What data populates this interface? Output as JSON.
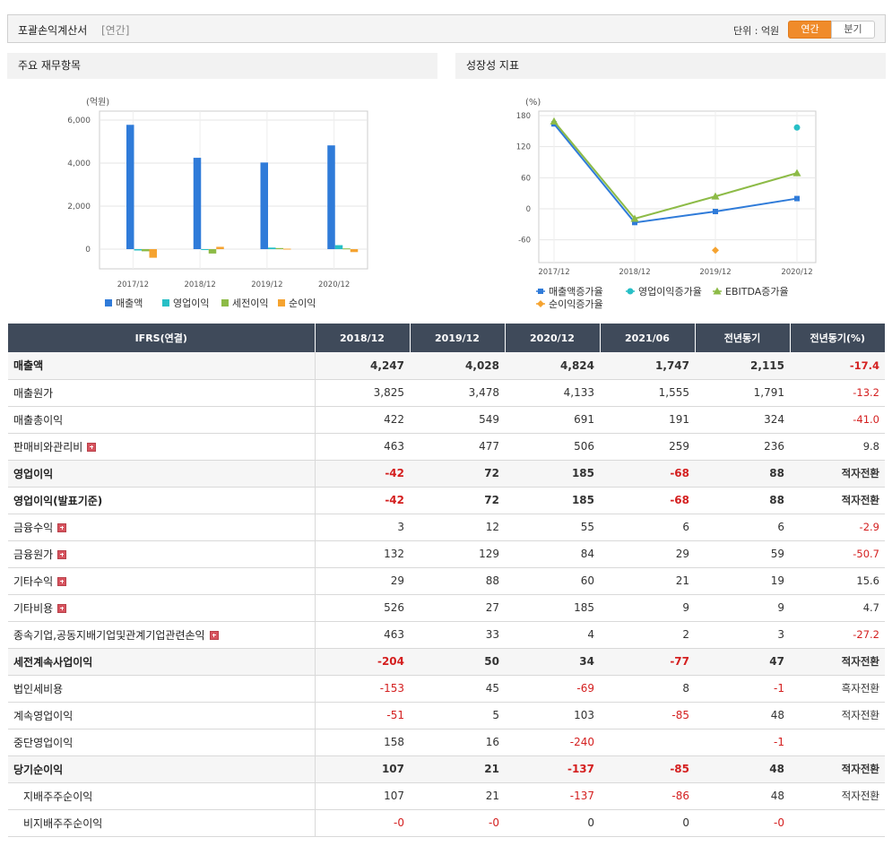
{
  "header": {
    "title": "포괄손익계산서",
    "period": "[연간]",
    "unit": "단위 : 억원",
    "toggle_annual": "연간",
    "toggle_quarter": "분기"
  },
  "panels": {
    "left_title": "주요 재무항목",
    "right_title": "성장성 지표"
  },
  "colors": {
    "sales": "#2f7bd9",
    "op": "#27bfc6",
    "pretax": "#8dbb47",
    "net": "#f5a330",
    "neg": "#d41f1f",
    "header_bg": "#3f4a5a"
  },
  "chart_data": [
    {
      "type": "bar",
      "unit_label": "(억원)",
      "categories": [
        "2017/12",
        "2018/12",
        "2019/12",
        "2020/12"
      ],
      "series": [
        {
          "name": "매출액",
          "values": [
            5780,
            4247,
            4028,
            4824
          ]
        },
        {
          "name": "영업이익",
          "values": [
            -62,
            -42,
            72,
            185
          ]
        },
        {
          "name": "세전이익",
          "values": [
            -100,
            -204,
            50,
            34
          ]
        },
        {
          "name": "순이익",
          "values": [
            -400,
            107,
            21,
            -137
          ]
        }
      ],
      "yticks": [
        "6,000",
        "4,000",
        "2,000",
        "0"
      ],
      "ylim": [
        -500,
        6300
      ],
      "legend": "bottom"
    },
    {
      "type": "line",
      "unit_label": "(%)",
      "categories": [
        "2017/12",
        "2018/12",
        "2019/12",
        "2020/12"
      ],
      "series": [
        {
          "name": "매출액증가율",
          "values": [
            164,
            -26.5,
            -5.2,
            19.8
          ]
        },
        {
          "name": "영업이익증가율",
          "values": [
            null,
            null,
            null,
            157
          ]
        },
        {
          "name": "EBITDA증가율",
          "values": [
            169,
            -19,
            24,
            69
          ]
        },
        {
          "name": "순이익증가율",
          "values": [
            null,
            null,
            -80,
            null
          ]
        }
      ],
      "yticks": [
        "180",
        "120",
        "60",
        "0",
        "-60"
      ],
      "ylim": [
        -100,
        190
      ],
      "legend": "bottom"
    }
  ],
  "table": {
    "columns": [
      "IFRS(연결)",
      "2018/12",
      "2019/12",
      "2020/12",
      "2021/06",
      "전년동기",
      "전년동기(%)"
    ],
    "rows": [
      {
        "label": "매출액",
        "values": [
          "4,247",
          "4,028",
          "4,824",
          "1,747",
          "2,115",
          "-17.4"
        ],
        "bold": true,
        "shade": true,
        "plus": false,
        "sub": false
      },
      {
        "label": "매출원가",
        "values": [
          "3,825",
          "3,478",
          "4,133",
          "1,555",
          "1,791",
          "-13.2"
        ],
        "bold": false,
        "shade": false,
        "plus": false,
        "sub": false
      },
      {
        "label": "매출총이익",
        "values": [
          "422",
          "549",
          "691",
          "191",
          "324",
          "-41.0"
        ],
        "bold": false,
        "shade": false,
        "plus": false,
        "sub": false
      },
      {
        "label": "판매비와관리비",
        "values": [
          "463",
          "477",
          "506",
          "259",
          "236",
          "9.8"
        ],
        "bold": false,
        "shade": false,
        "plus": true,
        "sub": false
      },
      {
        "label": "영업이익",
        "values": [
          "-42",
          "72",
          "185",
          "-68",
          "88",
          "적자전환"
        ],
        "bold": true,
        "shade": true,
        "plus": false,
        "sub": false
      },
      {
        "label": "영업이익(발표기준)",
        "values": [
          "-42",
          "72",
          "185",
          "-68",
          "88",
          "적자전환"
        ],
        "bold": true,
        "shade": false,
        "plus": false,
        "sub": false
      },
      {
        "label": "금융수익",
        "values": [
          "3",
          "12",
          "55",
          "6",
          "6",
          "-2.9"
        ],
        "bold": false,
        "shade": false,
        "plus": true,
        "sub": false
      },
      {
        "label": "금융원가",
        "values": [
          "132",
          "129",
          "84",
          "29",
          "59",
          "-50.7"
        ],
        "bold": false,
        "shade": false,
        "plus": true,
        "sub": false
      },
      {
        "label": "기타수익",
        "values": [
          "29",
          "88",
          "60",
          "21",
          "19",
          "15.6"
        ],
        "bold": false,
        "shade": false,
        "plus": true,
        "sub": false
      },
      {
        "label": "기타비용",
        "values": [
          "526",
          "27",
          "185",
          "9",
          "9",
          "4.7"
        ],
        "bold": false,
        "shade": false,
        "plus": true,
        "sub": false
      },
      {
        "label": "종속기업,공동지배기업및관계기업관련손익",
        "values": [
          "463",
          "33",
          "4",
          "2",
          "3",
          "-27.2"
        ],
        "bold": false,
        "shade": false,
        "plus": true,
        "sub": false
      },
      {
        "label": "세전계속사업이익",
        "values": [
          "-204",
          "50",
          "34",
          "-77",
          "47",
          "적자전환"
        ],
        "bold": true,
        "shade": true,
        "plus": false,
        "sub": false
      },
      {
        "label": "법인세비용",
        "values": [
          "-153",
          "45",
          "-69",
          "8",
          "-1",
          "흑자전환"
        ],
        "bold": false,
        "shade": false,
        "plus": false,
        "sub": false
      },
      {
        "label": "계속영업이익",
        "values": [
          "-51",
          "5",
          "103",
          "-85",
          "48",
          "적자전환"
        ],
        "bold": false,
        "shade": false,
        "plus": false,
        "sub": false
      },
      {
        "label": "중단영업이익",
        "values": [
          "158",
          "16",
          "-240",
          "",
          "-1",
          ""
        ],
        "bold": false,
        "shade": false,
        "plus": false,
        "sub": false
      },
      {
        "label": "당기순이익",
        "values": [
          "107",
          "21",
          "-137",
          "-85",
          "48",
          "적자전환"
        ],
        "bold": true,
        "shade": true,
        "plus": false,
        "sub": false
      },
      {
        "label": "지배주주순이익",
        "values": [
          "107",
          "21",
          "-137",
          "-86",
          "48",
          "적자전환"
        ],
        "bold": false,
        "shade": false,
        "plus": false,
        "sub": true
      },
      {
        "label": "비지배주주순이익",
        "values": [
          "-0",
          "-0",
          "0",
          "0",
          "-0",
          ""
        ],
        "bold": false,
        "shade": false,
        "plus": false,
        "sub": true
      }
    ]
  }
}
